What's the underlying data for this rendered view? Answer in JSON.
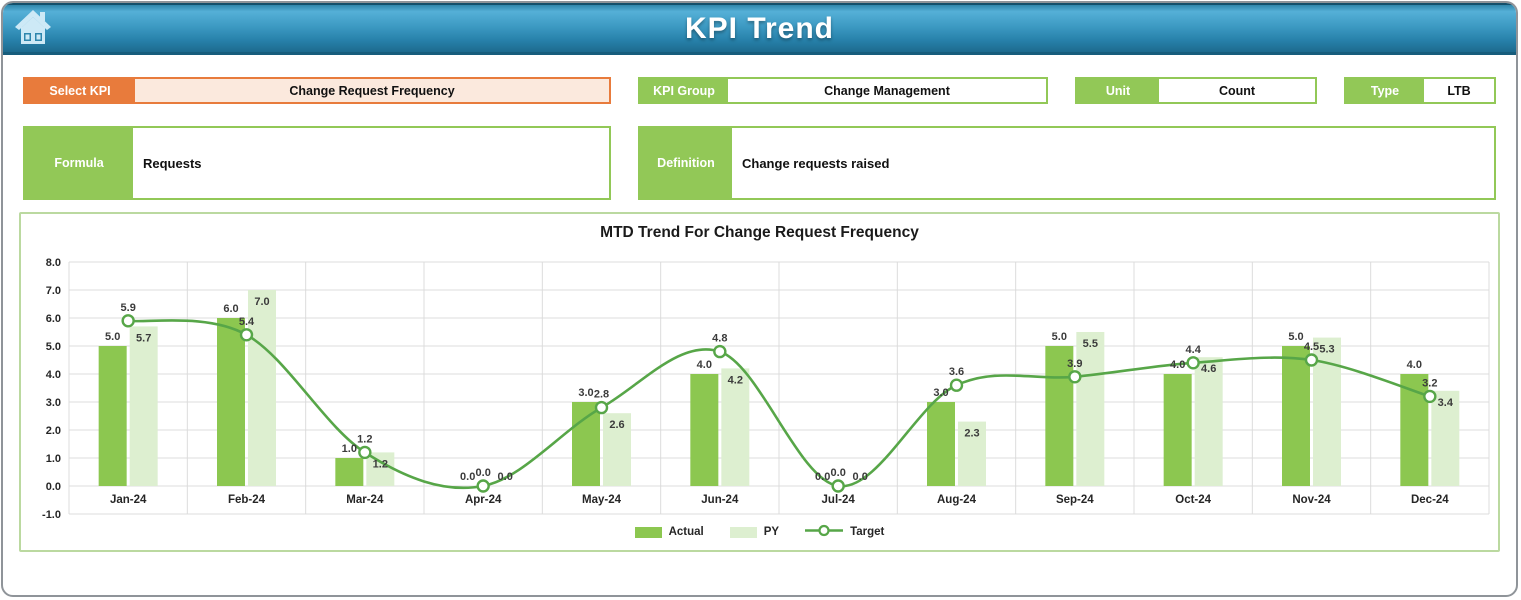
{
  "header": {
    "title": "KPI Trend"
  },
  "fields": {
    "select_kpi": {
      "label": "Select KPI",
      "value": "Change Request Frequency"
    },
    "kpi_group": {
      "label": "KPI Group",
      "value": "Change Management"
    },
    "unit": {
      "label": "Unit",
      "value": "Count"
    },
    "type": {
      "label": "Type",
      "value": "LTB"
    },
    "formula": {
      "label": "Formula",
      "value": "Requests"
    },
    "definition": {
      "label": "Definition",
      "value": "Change requests raised"
    }
  },
  "colors": {
    "accent_orange": "#e87b3c",
    "accent_orange_fill": "#fbe9dd",
    "accent_green": "#92c857",
    "actual_bar": "#8cc750",
    "py_bar": "#ddefd0",
    "target_line": "#57a648",
    "gridline": "#dcdcdc",
    "header_blue_top": "#55b0d7",
    "header_blue_bottom": "#1d6a8e",
    "chart_border": "#bbd9a0"
  },
  "chart_data": {
    "type": "bar",
    "title": "MTD Trend For Change Request Frequency",
    "categories": [
      "Jan-24",
      "Feb-24",
      "Mar-24",
      "Apr-24",
      "May-24",
      "Jun-24",
      "Jul-24",
      "Aug-24",
      "Sep-24",
      "Oct-24",
      "Nov-24",
      "Dec-24"
    ],
    "series": [
      {
        "name": "Actual",
        "kind": "bar",
        "color": "#8cc750",
        "values": [
          5.0,
          6.0,
          1.0,
          0.0,
          3.0,
          4.0,
          0.0,
          3.0,
          5.0,
          4.0,
          5.0,
          4.0
        ]
      },
      {
        "name": "PY",
        "kind": "bar",
        "color": "#ddefd0",
        "values": [
          5.7,
          7.0,
          1.2,
          0.0,
          2.6,
          4.2,
          0.0,
          2.3,
          5.5,
          4.6,
          5.3,
          3.4
        ]
      },
      {
        "name": "Target",
        "kind": "line",
        "color": "#57a648",
        "values": [
          5.9,
          5.4,
          1.2,
          0.0,
          2.8,
          4.8,
          0.0,
          3.6,
          3.9,
          4.4,
          4.5,
          3.2
        ]
      }
    ],
    "xlabel": "",
    "ylabel": "",
    "ylim": [
      -1,
      8
    ],
    "ytick_step": 1,
    "value_format": "one_decimal",
    "grid": true,
    "legend_position": "bottom"
  }
}
